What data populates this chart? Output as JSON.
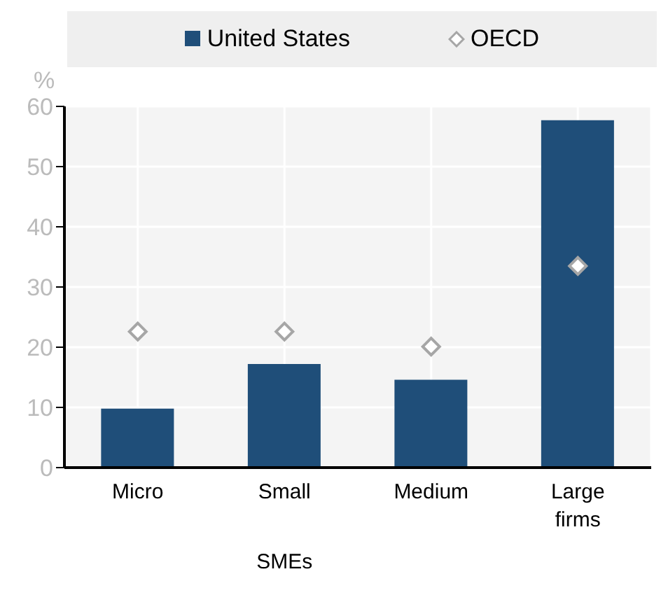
{
  "chart_data": {
    "type": "bar",
    "ylabel": "%",
    "categories": [
      "Micro",
      "Small",
      "Medium",
      "Large firms"
    ],
    "series": [
      {
        "name": "United States",
        "color": "#1f4e79",
        "values": [
          9.8,
          17.2,
          14.6,
          57.7
        ]
      },
      {
        "name": "OECD",
        "type": "scatter",
        "color": "#a6a6a6",
        "values": [
          22.6,
          22.6,
          20.1,
          33.5
        ]
      }
    ],
    "ylim": [
      0,
      60
    ],
    "yticks": [
      0,
      10,
      20,
      30,
      40,
      50,
      60
    ],
    "grid": true,
    "legend": "top",
    "marker": "diamond",
    "annotations": [
      "SMEs"
    ]
  }
}
